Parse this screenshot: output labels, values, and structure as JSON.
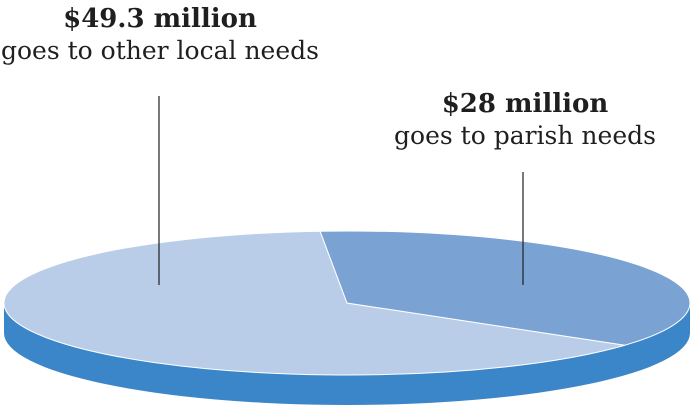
{
  "chart_data": {
    "type": "pie",
    "style": "3d",
    "title": "",
    "slices": [
      {
        "amount_label": "$49.3 million",
        "description": "goes to other local needs",
        "value": 49.3,
        "unit": "million USD",
        "color": "#b9cde9"
      },
      {
        "amount_label": "$28 million",
        "description": "goes to parish needs",
        "value": 28,
        "unit": "million USD",
        "color": "#7aa3d4"
      }
    ],
    "side_color": "#3a86c8"
  }
}
